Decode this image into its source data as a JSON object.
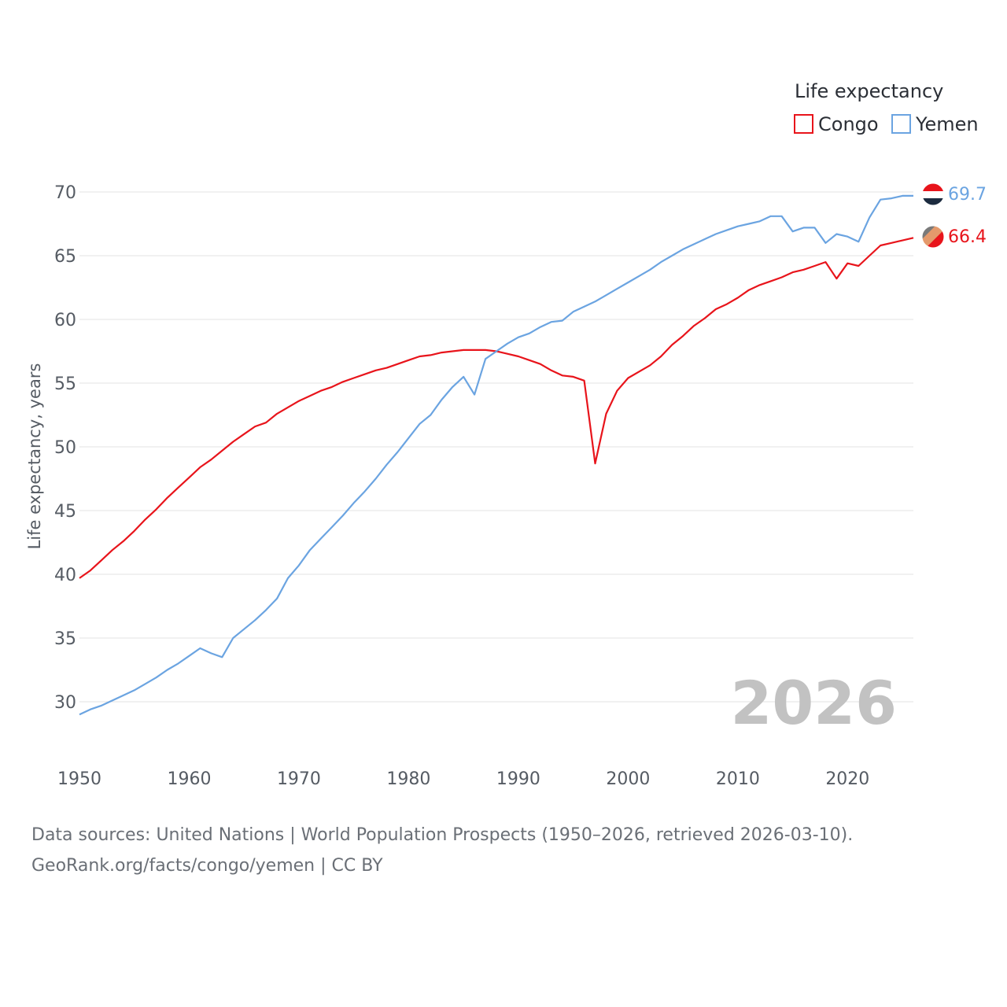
{
  "chart_data": {
    "type": "line",
    "title": "",
    "ylabel": "Life expectancy, years",
    "xlabel": "",
    "xlim": [
      1950,
      2026
    ],
    "ylim": [
      27,
      72
    ],
    "x_ticks": [
      1950,
      1960,
      1970,
      1980,
      1990,
      2000,
      2010,
      2020
    ],
    "y_ticks": [
      30,
      35,
      40,
      45,
      50,
      55,
      60,
      65,
      70
    ],
    "grid": true,
    "legend": {
      "title": "Life expectancy",
      "position": "top-right"
    },
    "current_year_label": "2026",
    "x": [
      1950,
      1951,
      1952,
      1953,
      1954,
      1955,
      1956,
      1957,
      1958,
      1959,
      1960,
      1961,
      1962,
      1963,
      1964,
      1965,
      1966,
      1967,
      1968,
      1969,
      1970,
      1971,
      1972,
      1973,
      1974,
      1975,
      1976,
      1977,
      1978,
      1979,
      1980,
      1981,
      1982,
      1983,
      1984,
      1985,
      1986,
      1987,
      1988,
      1989,
      1990,
      1991,
      1992,
      1993,
      1994,
      1995,
      1996,
      1997,
      1998,
      1999,
      2000,
      2001,
      2002,
      2003,
      2004,
      2005,
      2006,
      2007,
      2008,
      2009,
      2010,
      2011,
      2012,
      2013,
      2014,
      2015,
      2016,
      2017,
      2018,
      2019,
      2020,
      2021,
      2022,
      2023,
      2024,
      2025,
      2026
    ],
    "series": [
      {
        "name": "Congo",
        "color": "#e8141b",
        "end_label": "66.4",
        "values": [
          39.7,
          40.3,
          41.1,
          41.9,
          42.6,
          43.4,
          44.3,
          45.1,
          46.0,
          46.8,
          47.6,
          48.4,
          49.0,
          49.7,
          50.4,
          51.0,
          51.6,
          51.9,
          52.6,
          53.1,
          53.6,
          54.0,
          54.4,
          54.7,
          55.1,
          55.4,
          55.7,
          56.0,
          56.2,
          56.5,
          56.8,
          57.1,
          57.2,
          57.4,
          57.5,
          57.6,
          57.6,
          57.6,
          57.5,
          57.3,
          57.1,
          56.8,
          56.5,
          56.0,
          55.6,
          55.5,
          55.2,
          48.7,
          52.6,
          54.4,
          55.4,
          55.9,
          56.4,
          57.1,
          58.0,
          58.7,
          59.5,
          60.1,
          60.8,
          61.2,
          61.7,
          62.3,
          62.7,
          63.0,
          63.3,
          63.7,
          63.9,
          64.2,
          64.5,
          63.2,
          64.4,
          64.2,
          65.0,
          65.8,
          66.0,
          66.2,
          66.4
        ]
      },
      {
        "name": "Yemen",
        "color": "#6ba4e1",
        "end_label": "69.7",
        "values": [
          29.0,
          29.4,
          29.7,
          30.1,
          30.5,
          30.9,
          31.4,
          31.9,
          32.5,
          33.0,
          33.6,
          34.2,
          33.8,
          33.5,
          35.0,
          35.7,
          36.4,
          37.2,
          38.1,
          39.7,
          40.7,
          41.9,
          42.8,
          43.7,
          44.6,
          45.6,
          46.5,
          47.5,
          48.6,
          49.6,
          50.7,
          51.8,
          52.5,
          53.7,
          54.7,
          55.5,
          54.1,
          56.9,
          57.5,
          58.1,
          58.6,
          58.9,
          59.4,
          59.8,
          59.9,
          60.6,
          61.0,
          61.4,
          61.9,
          62.4,
          62.9,
          63.4,
          63.9,
          64.5,
          65.0,
          65.5,
          65.9,
          66.3,
          66.7,
          67.0,
          67.3,
          67.5,
          67.7,
          68.1,
          68.1,
          66.9,
          67.2,
          67.2,
          66.0,
          66.7,
          66.5,
          66.1,
          68.0,
          69.4,
          69.5,
          69.7,
          69.7
        ]
      }
    ]
  },
  "footer": {
    "source_line": "Data sources: United Nations | World Population Prospects (1950–2026, retrieved 2026-03-10).",
    "credit_line": "GeoRank.org/facts/congo/yemen | CC BY"
  }
}
